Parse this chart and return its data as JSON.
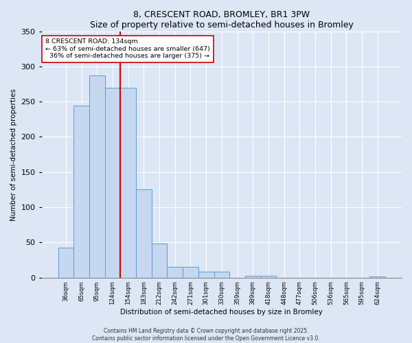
{
  "title": "8, CRESCENT ROAD, BROMLEY, BR1 3PW",
  "subtitle": "Size of property relative to semi-detached houses in Bromley",
  "xlabel": "Distribution of semi-detached houses by size in Bromley",
  "ylabel": "Number of semi-detached properties",
  "categories": [
    "36sqm",
    "65sqm",
    "95sqm",
    "124sqm",
    "154sqm",
    "183sqm",
    "212sqm",
    "242sqm",
    "271sqm",
    "301sqm",
    "330sqm",
    "359sqm",
    "389sqm",
    "418sqm",
    "448sqm",
    "477sqm",
    "506sqm",
    "536sqm",
    "565sqm",
    "595sqm",
    "624sqm"
  ],
  "values": [
    43,
    244,
    287,
    270,
    270,
    125,
    48,
    15,
    15,
    8,
    8,
    0,
    3,
    3,
    0,
    0,
    0,
    0,
    0,
    0,
    2
  ],
  "bar_color": "#c5d8f0",
  "bar_edge_color": "#5b9bd5",
  "property_label": "8 CRESCENT ROAD: 134sqm",
  "pct_smaller": 63,
  "pct_smaller_n": 647,
  "pct_larger": 36,
  "pct_larger_n": 375,
  "vline_color": "#cc0000",
  "vline_position": 3.5,
  "ylim": [
    0,
    350
  ],
  "yticks": [
    0,
    50,
    100,
    150,
    200,
    250,
    300,
    350
  ],
  "bg_color": "#dce6f5",
  "grid_color": "#ffffff",
  "annotation_box_color": "#ffffff",
  "annotation_box_edge": "#cc0000",
  "footer_line1": "Contains HM Land Registry data © Crown copyright and database right 2025.",
  "footer_line2": "Contains public sector information licensed under the Open Government Licence v3.0."
}
